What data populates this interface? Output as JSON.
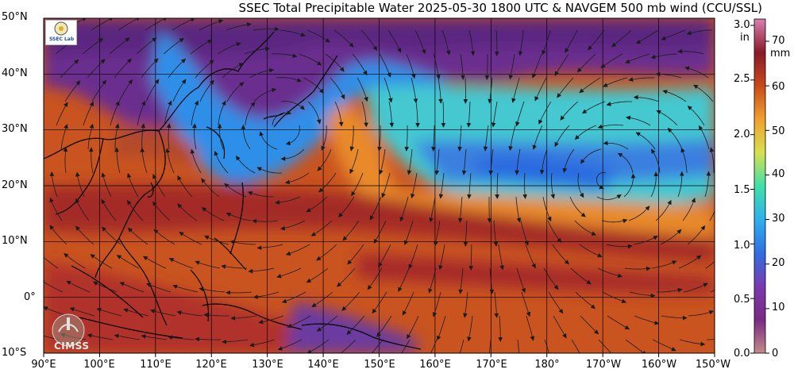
{
  "title": "SSEC Total Precipitable Water  2025-05-30 1800 UTC & NAVGEM 500 mb wind (CCU/SSL)",
  "lat_labels": [
    "50°N",
    "40°N",
    "30°N",
    "20°N",
    "10°N",
    "0°",
    "10°S"
  ],
  "lon_labels": [
    "90°E",
    "100°E",
    "110°E",
    "120°E",
    "130°E",
    "140°E",
    "150°E",
    "160°E",
    "170°E",
    "180°",
    "170°W",
    "160°W",
    "150°W"
  ],
  "colorbar": {
    "inches": [
      "3.0",
      "2.5",
      "2.0",
      "1.5",
      "1.0",
      "0.5",
      "0.0"
    ],
    "inch_unit": "in",
    "mm": [
      "70",
      "60",
      "50",
      "40",
      "30",
      "20",
      "10",
      "0"
    ],
    "mm_unit": "mm",
    "stops": [
      "#c48a8a",
      "#7a2a82",
      "#7a3ab0",
      "#2f6fe0",
      "#2fb0ee",
      "#3fe0a8",
      "#d8e050",
      "#f0a030",
      "#c84a1a",
      "#8a1a2a",
      "#d880b0"
    ]
  },
  "logos": {
    "ssec": "SSEC",
    "ssec_text": "SSEC  Lab",
    "cimss": "CIMSS"
  },
  "colors": {
    "moist": "#a9332a",
    "dry": "#6b2f8e",
    "mid": "#3ec8d8",
    "land": "#000000",
    "wind": "#1c1c1c"
  }
}
